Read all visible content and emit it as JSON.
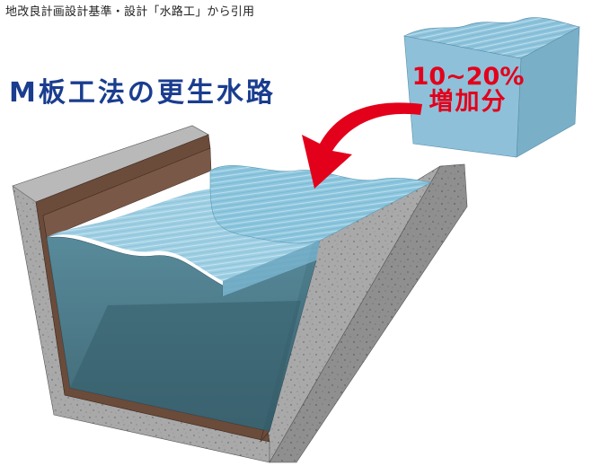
{
  "caption": "地改良計画設計基準・設計「水路工」から引用",
  "title": "M板工法の更生水路",
  "increase_label": {
    "line1": "10~20%",
    "line2": "増加分"
  },
  "colors": {
    "title": "#1a3d8f",
    "increase_text": "#e3001b",
    "arrow": "#e3001b",
    "concrete": "#a8a8a8",
    "liner": "#6b4b3a",
    "water_body": "#3f6f80",
    "water_surface": "#8cc8e0",
    "added_water": "#86b9d3"
  }
}
